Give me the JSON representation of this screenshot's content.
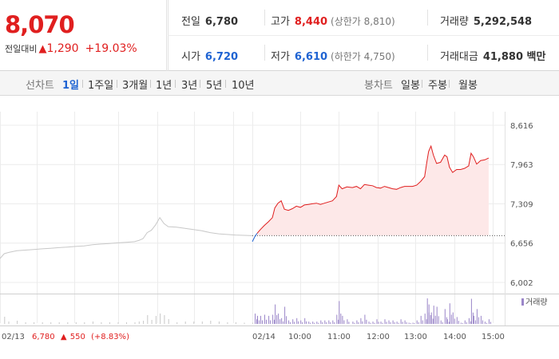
{
  "header": {
    "price": "8,070",
    "change_label": "전일대비",
    "change_icon": "up-triangle-icon",
    "change_arrow": "▲",
    "change_amount": "1,290",
    "change_pct": "+19.03%",
    "prev_close_label": "전일",
    "prev_close": "6,780",
    "high_label": "고가",
    "high": "8,440",
    "upper_limit": "(상한가 8,810)",
    "volume_label": "거래량",
    "volume": "5,292,548",
    "open_label": "시가",
    "open": "6,720",
    "low_label": "저가",
    "low": "6,610",
    "lower_limit": "(하한가 4,750)",
    "trade_value_label": "거래대금",
    "trade_value": "41,880 백만"
  },
  "tabs": {
    "line_label": "선차트",
    "line_items": [
      "1일",
      "1주일",
      "3개월",
      "1년",
      "3년",
      "5년",
      "10년"
    ],
    "line_active": "1일",
    "candle_label": "봉차트",
    "candle_items": [
      "일봉",
      "주봉",
      "월봉"
    ]
  },
  "colors": {
    "up": "#e01f1f",
    "down": "#1f63d2",
    "prev_day": "#c8c8c8",
    "volume": "#9b86c9",
    "fill": "#fde8e8"
  },
  "chart_data": {
    "type": "line",
    "price_axis": {
      "ticks": [
        "8,616",
        "7,963",
        "7,309",
        "6,656",
        "6,002"
      ],
      "values": [
        8616,
        7963,
        7309,
        6656,
        6002
      ]
    },
    "x_ticks": [
      "02/13",
      "02/14",
      "10:00",
      "11:00",
      "12:00",
      "13:00",
      "14:00",
      "15:00"
    ],
    "reference_price": 6780,
    "previous_day": {
      "date": "02/13",
      "close": "6,780",
      "arrow": "▲",
      "change": "550",
      "change_pct": "(+8.83%)",
      "points": [
        [
          0,
          6400
        ],
        [
          5,
          6480
        ],
        [
          10,
          6500
        ],
        [
          20,
          6530
        ],
        [
          30,
          6540
        ],
        [
          40,
          6550
        ],
        [
          50,
          6560
        ],
        [
          60,
          6570
        ],
        [
          70,
          6580
        ],
        [
          80,
          6590
        ],
        [
          90,
          6600
        ],
        [
          100,
          6610
        ],
        [
          110,
          6630
        ],
        [
          120,
          6640
        ],
        [
          130,
          6650
        ],
        [
          140,
          6660
        ],
        [
          150,
          6670
        ],
        [
          160,
          6680
        ],
        [
          165,
          6700
        ],
        [
          170,
          6730
        ],
        [
          175,
          6830
        ],
        [
          180,
          6870
        ],
        [
          185,
          6960
        ],
        [
          190,
          7080
        ],
        [
          195,
          6980
        ],
        [
          200,
          6930
        ],
        [
          210,
          6920
        ],
        [
          220,
          6900
        ],
        [
          230,
          6880
        ],
        [
          240,
          6860
        ],
        [
          250,
          6830
        ],
        [
          260,
          6810
        ],
        [
          270,
          6800
        ],
        [
          280,
          6790
        ],
        [
          290,
          6785
        ],
        [
          300,
          6780
        ]
      ]
    },
    "today": {
      "date": "02/14",
      "points": [
        [
          0,
          6680
        ],
        [
          3,
          6760
        ],
        [
          6,
          6820
        ],
        [
          10,
          6880
        ],
        [
          15,
          6950
        ],
        [
          20,
          7010
        ],
        [
          25,
          7080
        ],
        [
          28,
          7240
        ],
        [
          32,
          7320
        ],
        [
          36,
          7360
        ],
        [
          40,
          7220
        ],
        [
          45,
          7200
        ],
        [
          50,
          7230
        ],
        [
          55,
          7270
        ],
        [
          60,
          7250
        ],
        [
          65,
          7290
        ],
        [
          70,
          7300
        ],
        [
          75,
          7310
        ],
        [
          80,
          7320
        ],
        [
          85,
          7300
        ],
        [
          90,
          7320
        ],
        [
          95,
          7340
        ],
        [
          100,
          7360
        ],
        [
          105,
          7430
        ],
        [
          108,
          7620
        ],
        [
          112,
          7560
        ],
        [
          118,
          7590
        ],
        [
          125,
          7580
        ],
        [
          130,
          7600
        ],
        [
          135,
          7560
        ],
        [
          140,
          7630
        ],
        [
          145,
          7620
        ],
        [
          150,
          7610
        ],
        [
          155,
          7580
        ],
        [
          160,
          7570
        ],
        [
          165,
          7600
        ],
        [
          170,
          7580
        ],
        [
          175,
          7560
        ],
        [
          180,
          7550
        ],
        [
          185,
          7580
        ],
        [
          190,
          7600
        ],
        [
          195,
          7600
        ],
        [
          200,
          7600
        ],
        [
          205,
          7620
        ],
        [
          210,
          7680
        ],
        [
          215,
          7760
        ],
        [
          218,
          8020
        ],
        [
          220,
          8180
        ],
        [
          223,
          8270
        ],
        [
          226,
          8120
        ],
        [
          230,
          7980
        ],
        [
          235,
          8000
        ],
        [
          240,
          8120
        ],
        [
          243,
          8090
        ],
        [
          246,
          7920
        ],
        [
          250,
          7830
        ],
        [
          255,
          7880
        ],
        [
          260,
          7880
        ],
        [
          265,
          7900
        ],
        [
          270,
          7940
        ],
        [
          273,
          8150
        ],
        [
          276,
          8090
        ],
        [
          280,
          7970
        ],
        [
          285,
          8030
        ],
        [
          290,
          8040
        ],
        [
          295,
          8070
        ]
      ]
    },
    "volume_label": "거래량"
  }
}
